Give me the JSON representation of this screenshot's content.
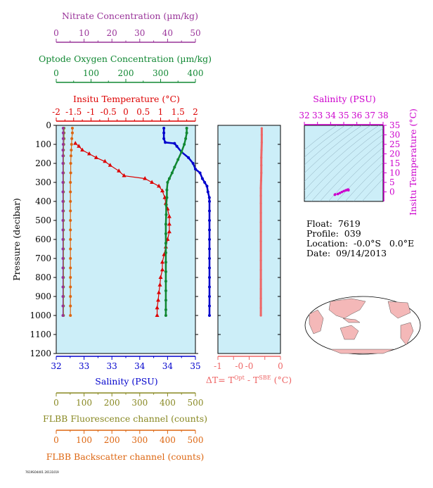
{
  "colors": {
    "nitrate": "#993399",
    "oxygen": "#118833",
    "temperature": "#dd0000",
    "salinity": "#0000cc",
    "fluorescence": "#888822",
    "backscatter": "#dd6611",
    "delta_t": "#ee6666",
    "plot_bg": "#cceef8",
    "map_land": "#f4b8b8",
    "magenta": "#cc00cc"
  },
  "stamp": "7619SO4401 20131019",
  "info": {
    "float": "Float:  7619",
    "profile": "Profile:  039",
    "location": "Location:  -0.0°S   0.0°E",
    "date": "Date:  09/14/2013"
  },
  "chart_data": [
    {
      "type": "line",
      "id": "main_profile",
      "ylabel": "Pressure (decibar)",
      "ylim": [
        1200,
        0
      ],
      "yticks": [
        0,
        100,
        200,
        300,
        400,
        500,
        600,
        700,
        800,
        900,
        1000,
        1100,
        1200
      ],
      "grid": false,
      "axes": {
        "nitrate": {
          "label": "Nitrate Concentration (µm/kg)",
          "range": [
            0,
            50
          ],
          "ticks": [
            0,
            10,
            20,
            30,
            40,
            50
          ]
        },
        "oxygen": {
          "label": "Optode Oxygen Concentration (µm/kg)",
          "range": [
            0,
            400
          ],
          "ticks": [
            0,
            100,
            200,
            300,
            400
          ]
        },
        "temperature": {
          "label": "Insitu Temperature (°C)",
          "range": [
            -2,
            2
          ],
          "ticks": [
            "-2",
            "-1.5",
            "-1",
            "-0.5",
            "0",
            "0.5",
            "1",
            "1.5",
            "2"
          ]
        },
        "salinity": {
          "label": "Salinity (PSU)",
          "range": [
            32,
            35
          ],
          "ticks": [
            "32",
            "33",
            "33",
            "34",
            "34",
            "35"
          ]
        },
        "fluorescence": {
          "label": "FLBB Fluorescence channel (counts)",
          "range": [
            0,
            500
          ],
          "ticks": [
            0,
            100,
            200,
            300,
            400,
            500
          ]
        },
        "backscatter": {
          "label": "FLBB Backscatter channel (counts)",
          "range": [
            0,
            500
          ],
          "ticks": [
            0,
            100,
            200,
            300,
            400,
            500
          ]
        }
      },
      "series": [
        {
          "key": "temperature",
          "marker": "triangle",
          "points": [
            [
              -1.45,
              95
            ],
            [
              -1.35,
              110
            ],
            [
              -1.25,
              130
            ],
            [
              -1.05,
              150
            ],
            [
              -0.85,
              170
            ],
            [
              -0.6,
              190
            ],
            [
              -0.45,
              210
            ],
            [
              -0.2,
              240
            ],
            [
              -0.05,
              265
            ],
            [
              0.55,
              280
            ],
            [
              0.75,
              300
            ],
            [
              0.95,
              320
            ],
            [
              1.05,
              345
            ],
            [
              1.12,
              380
            ],
            [
              1.15,
              410
            ],
            [
              1.2,
              440
            ],
            [
              1.25,
              480
            ],
            [
              1.25,
              520
            ],
            [
              1.25,
              560
            ],
            [
              1.2,
              600
            ],
            [
              1.15,
              640
            ],
            [
              1.1,
              680
            ],
            [
              1.05,
              720
            ],
            [
              1.05,
              760
            ],
            [
              1.0,
              800
            ],
            [
              0.98,
              840
            ],
            [
              0.95,
              880
            ],
            [
              0.93,
              920
            ],
            [
              0.9,
              960
            ],
            [
              0.9,
              1000
            ]
          ]
        },
        {
          "key": "salinity",
          "marker": "circle",
          "points": [
            [
              34.32,
              15
            ],
            [
              34.32,
              40
            ],
            [
              34.32,
              70
            ],
            [
              34.35,
              90
            ],
            [
              34.55,
              95
            ],
            [
              34.6,
              110
            ],
            [
              34.7,
              140
            ],
            [
              34.85,
              170
            ],
            [
              34.95,
              200
            ],
            [
              35.0,
              230
            ],
            [
              35.1,
              250
            ],
            [
              35.15,
              280
            ],
            [
              35.2,
              300
            ],
            [
              35.25,
              320
            ],
            [
              35.27,
              350
            ],
            [
              35.3,
              380
            ],
            [
              35.32,
              400
            ],
            [
              35.33,
              450
            ],
            [
              35.33,
              500
            ],
            [
              35.34,
              550
            ],
            [
              35.35,
              600
            ],
            [
              35.35,
              650
            ],
            [
              35.35,
              700
            ],
            [
              35.36,
              750
            ],
            [
              35.36,
              800
            ],
            [
              35.36,
              850
            ],
            [
              35.36,
              900
            ],
            [
              35.36,
              950
            ],
            [
              35.36,
              1000
            ]
          ]
        },
        {
          "key": "oxygen",
          "marker": "circle",
          "points": [
            [
              375,
              15
            ],
            [
              375,
              40
            ],
            [
              372,
              70
            ],
            [
              368,
              100
            ],
            [
              360,
              140
            ],
            [
              350,
              180
            ],
            [
              340,
              220
            ],
            [
              333,
              250
            ],
            [
              325,
              280
            ],
            [
              320,
              300
            ],
            [
              318,
              340
            ],
            [
              318,
              380
            ],
            [
              316,
              420
            ],
            [
              316,
              470
            ],
            [
              315,
              520
            ],
            [
              315,
              570
            ],
            [
              315,
              620
            ],
            [
              315,
              670
            ],
            [
              315,
              720
            ],
            [
              315,
              770
            ],
            [
              315,
              820
            ],
            [
              315,
              870
            ],
            [
              315,
              920
            ],
            [
              315,
              970
            ],
            [
              315,
              1000
            ]
          ]
        },
        {
          "key": "fluorescence",
          "marker": "circle",
          "points": [
            [
              28,
              15
            ],
            [
              28,
              40
            ],
            [
              28,
              70
            ],
            [
              27,
              100
            ],
            [
              26,
              130
            ],
            [
              26,
              160
            ],
            [
              26,
              200
            ],
            [
              26,
              250
            ],
            [
              26,
              300
            ],
            [
              26,
              350
            ],
            [
              26,
              400
            ],
            [
              26,
              450
            ],
            [
              26,
              500
            ],
            [
              26,
              550
            ],
            [
              26,
              600
            ],
            [
              26,
              650
            ],
            [
              26,
              700
            ],
            [
              26,
              750
            ],
            [
              26,
              800
            ],
            [
              26,
              850
            ],
            [
              26,
              900
            ],
            [
              26,
              950
            ],
            [
              26,
              1000
            ]
          ]
        },
        {
          "key": "backscatter",
          "marker": "circle",
          "points": [
            [
              58,
              15
            ],
            [
              58,
              40
            ],
            [
              56,
              70
            ],
            [
              55,
              100
            ],
            [
              54,
              130
            ],
            [
              53,
              160
            ],
            [
              52,
              200
            ],
            [
              52,
              250
            ],
            [
              51,
              300
            ],
            [
              51,
              350
            ],
            [
              51,
              400
            ],
            [
              51,
              450
            ],
            [
              51,
              500
            ],
            [
              51,
              550
            ],
            [
              51,
              600
            ],
            [
              51,
              650
            ],
            [
              51,
              700
            ],
            [
              51,
              750
            ],
            [
              51,
              800
            ],
            [
              51,
              850
            ],
            [
              51,
              900
            ],
            [
              51,
              950
            ],
            [
              51,
              1000
            ]
          ]
        },
        {
          "key": "nitrate",
          "marker": "circle",
          "points": [
            [
              2.5,
              15
            ],
            [
              2.5,
              40
            ],
            [
              2.5,
              70
            ],
            [
              2.5,
              100
            ],
            [
              2.4,
              130
            ],
            [
              2.4,
              160
            ],
            [
              2.4,
              200
            ],
            [
              2.4,
              250
            ],
            [
              2.4,
              300
            ],
            [
              2.4,
              350
            ],
            [
              2.4,
              400
            ],
            [
              2.4,
              450
            ],
            [
              2.4,
              500
            ],
            [
              2.4,
              550
            ],
            [
              2.4,
              600
            ],
            [
              2.4,
              650
            ],
            [
              2.4,
              700
            ],
            [
              2.4,
              750
            ],
            [
              2.4,
              800
            ],
            [
              2.4,
              850
            ],
            [
              2.4,
              900
            ],
            [
              2.4,
              950
            ],
            [
              2.4,
              1000
            ]
          ]
        }
      ]
    },
    {
      "type": "line",
      "id": "delta_t_profile",
      "xlabel": "ΔT= T",
      "xlabel_sup1": "Opt",
      "xlabel_mid": " - T",
      "xlabel_sup2": "SBE",
      "xlabel_end": " (°C)",
      "xlim": [
        -1,
        0
      ],
      "xticks": [
        "-1",
        "-0",
        "-0",
        "0",
        "0"
      ],
      "ylim": [
        1200,
        0
      ],
      "series": [
        {
          "name": "",
          "points": [
            [
              -0.01,
              15
            ],
            [
              -0.01,
              50
            ],
            [
              -0.01,
              90
            ],
            [
              -0.015,
              130
            ],
            [
              -0.02,
              170
            ],
            [
              -0.02,
              210
            ],
            [
              -0.02,
              250
            ],
            [
              -0.025,
              290
            ],
            [
              -0.03,
              330
            ],
            [
              -0.03,
              370
            ],
            [
              -0.03,
              410
            ],
            [
              -0.03,
              460
            ],
            [
              -0.03,
              510
            ],
            [
              -0.03,
              560
            ],
            [
              -0.03,
              610
            ],
            [
              -0.03,
              660
            ],
            [
              -0.03,
              710
            ],
            [
              -0.03,
              760
            ],
            [
              -0.03,
              810
            ],
            [
              -0.03,
              860
            ],
            [
              -0.03,
              910
            ],
            [
              -0.03,
              960
            ],
            [
              -0.03,
              1000
            ]
          ]
        }
      ]
    },
    {
      "type": "scatter",
      "id": "ts_diagram",
      "title": "Salinity (PSU)",
      "xlim": [
        32,
        38
      ],
      "xticks": [
        "32",
        "33",
        "34",
        "35",
        "36",
        "37",
        "38"
      ],
      "ylabel": "Insitu Temperature (°C)",
      "ylim": [
        -5,
        35
      ],
      "yticks": [
        "0",
        "5",
        "10",
        "15",
        "20",
        "25",
        "30",
        "35"
      ],
      "points": [
        [
          34.32,
          -1.5
        ],
        [
          34.35,
          -1.3
        ],
        [
          34.55,
          -1.1
        ],
        [
          34.7,
          -0.6
        ],
        [
          34.85,
          -0.1
        ],
        [
          35.0,
          0.4
        ],
        [
          35.15,
          0.8
        ],
        [
          35.25,
          1.0
        ],
        [
          35.3,
          1.2
        ],
        [
          35.33,
          1.25
        ],
        [
          35.34,
          1.2
        ],
        [
          35.35,
          1.1
        ],
        [
          35.36,
          1.0
        ],
        [
          35.36,
          0.9
        ]
      ]
    }
  ]
}
